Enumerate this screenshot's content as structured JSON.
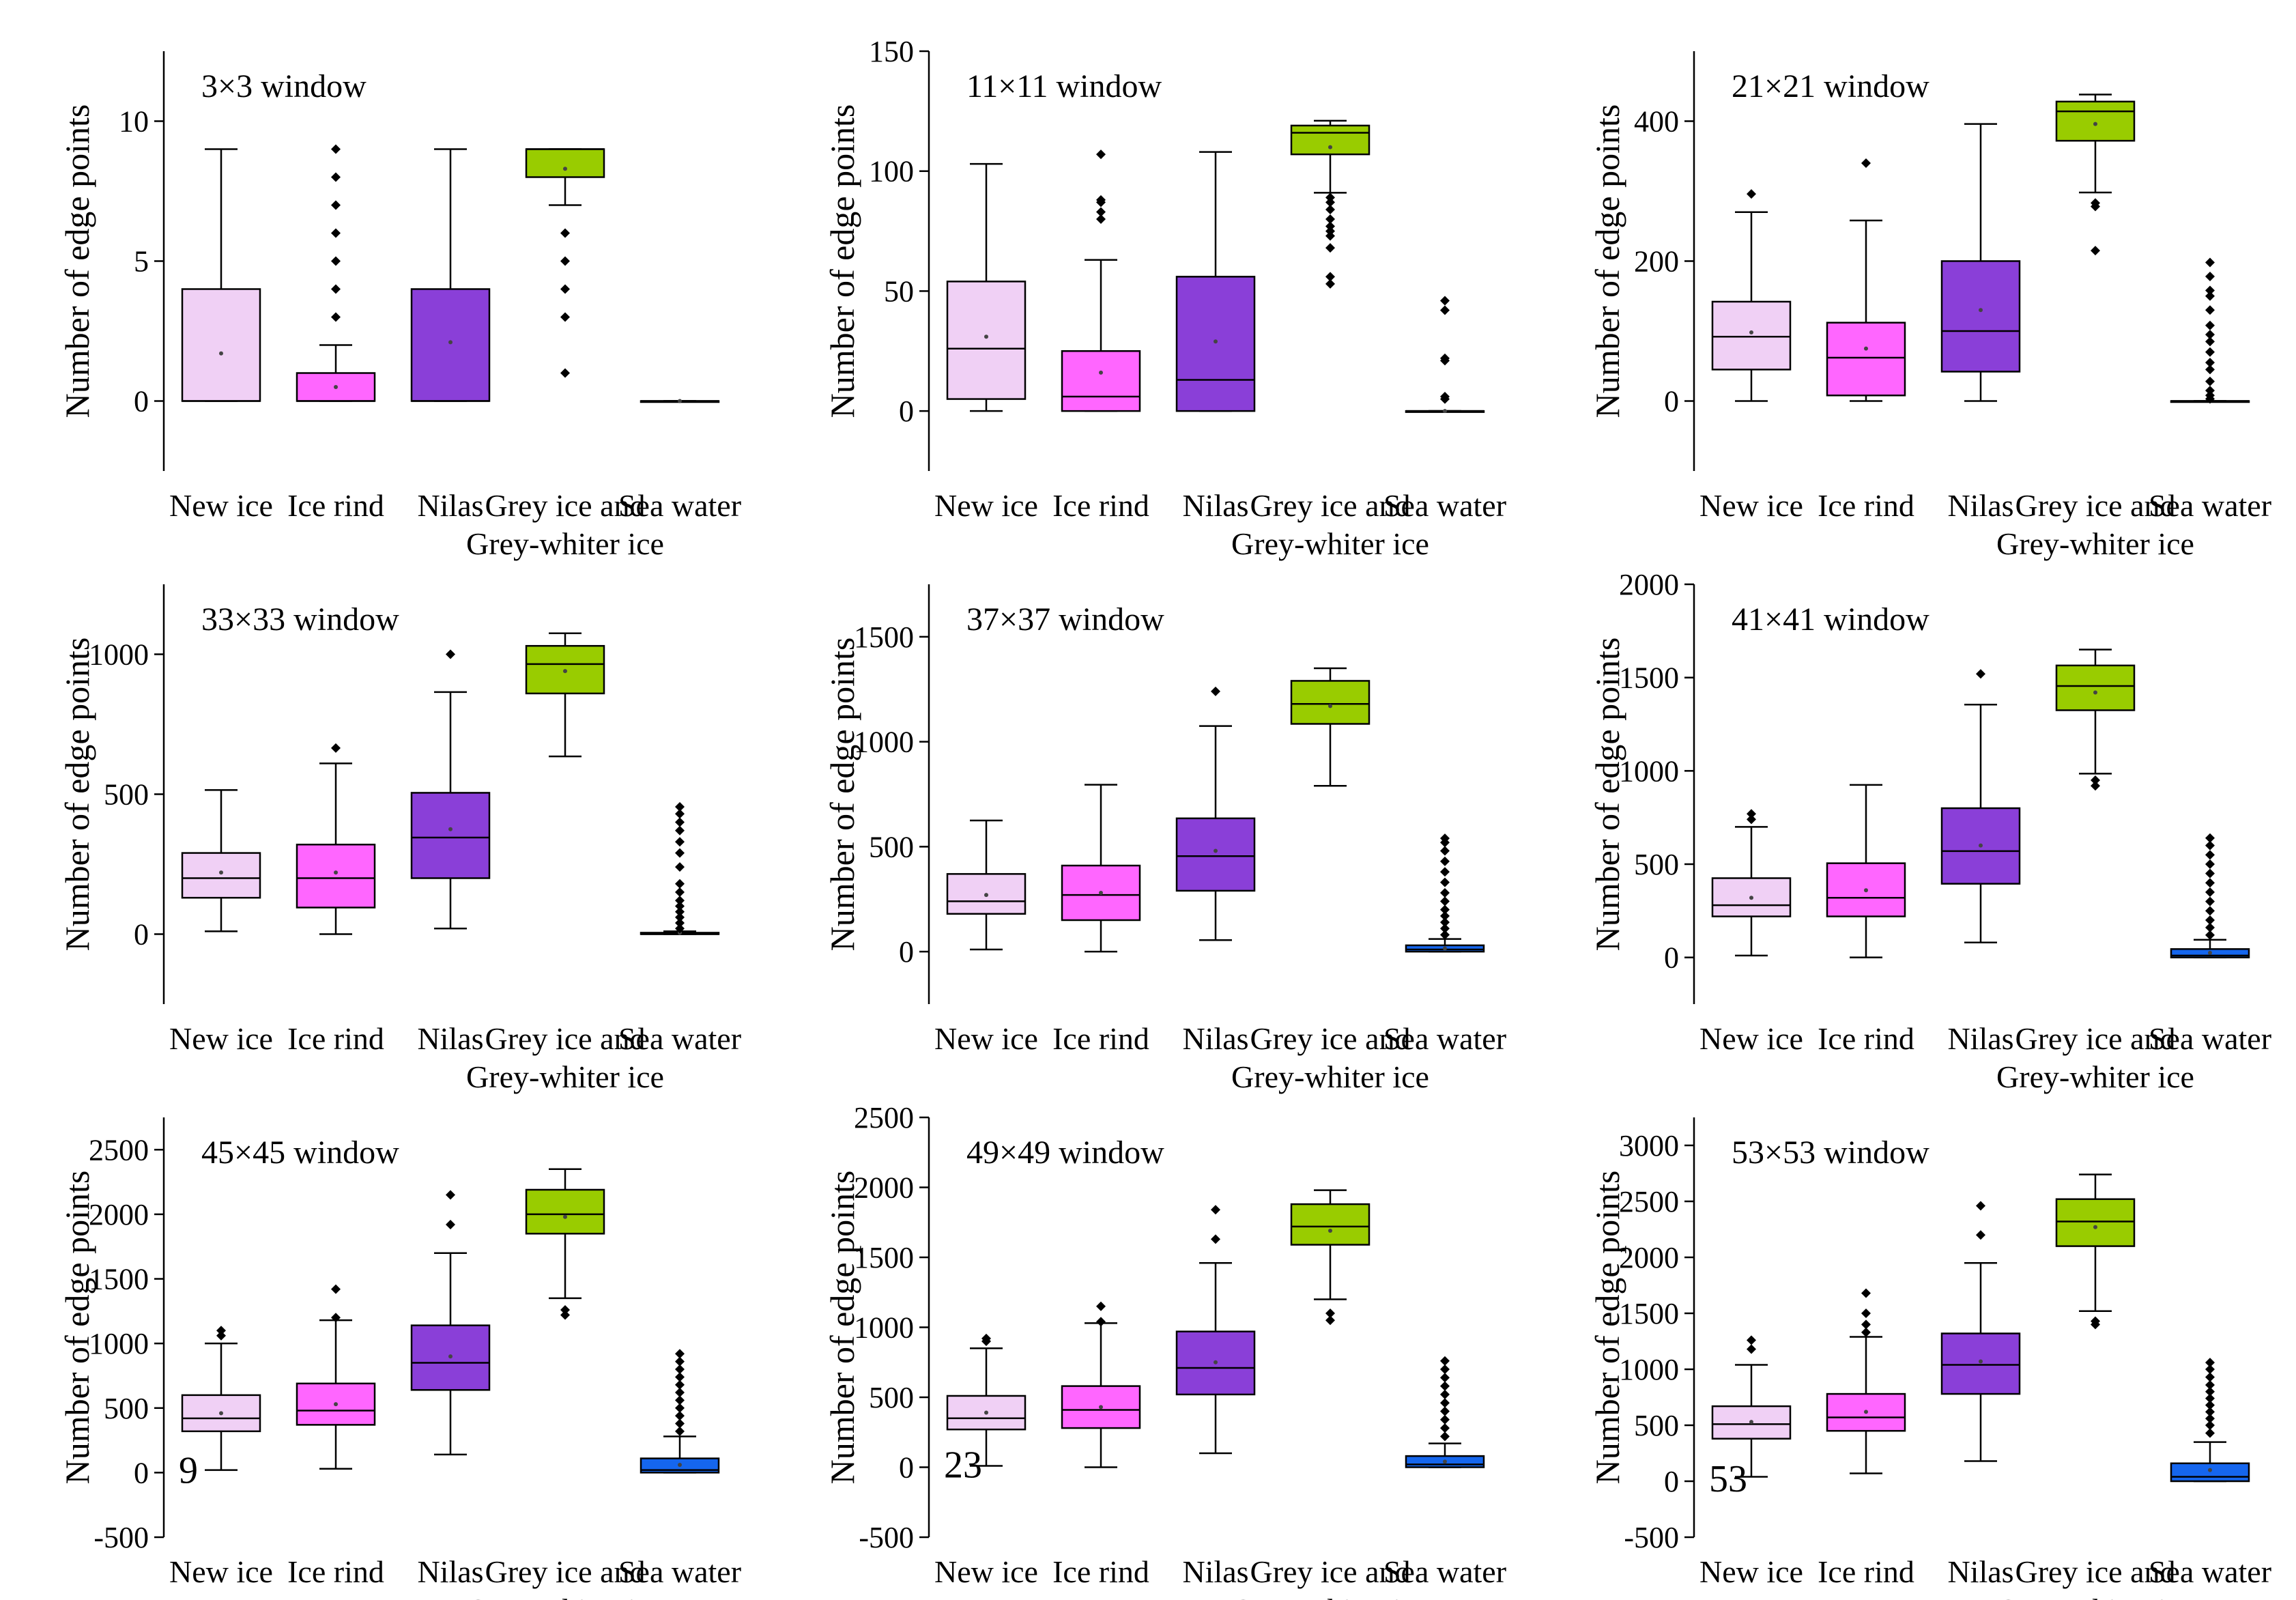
{
  "figure": {
    "categories": [
      "New ice",
      "Ice rind",
      "Nilas",
      "Grey ice and\nGrey-whiter ice",
      "Sea water"
    ],
    "ylabel": "Number of edge points",
    "colors": {
      "New ice": "#F0D0F5",
      "Ice rind": "#FF66FF",
      "Nilas": "#8A3FD8",
      "Grey ice and Grey-whiter ice": "#99CC00",
      "Sea water": "#1566EE"
    }
  },
  "chart_data": [
    {
      "type": "box",
      "title": "3×3 window",
      "ylabel": "Number of edge points",
      "ylim": [
        -2.5,
        12.5
      ],
      "yticks": [
        0,
        5,
        10
      ],
      "corner_label": "",
      "boxes": [
        {
          "category": "New ice",
          "min": 0,
          "q1": 0,
          "median": 0,
          "q3": 4,
          "max": 9,
          "mean": 1.7,
          "outliers": []
        },
        {
          "category": "Ice rind",
          "min": 0,
          "q1": 0,
          "median": 0,
          "q3": 1,
          "max": 2,
          "mean": 0.5,
          "outliers": [
            3,
            4,
            5,
            6,
            7,
            8,
            9
          ]
        },
        {
          "category": "Nilas",
          "min": 0,
          "q1": 0,
          "median": 0,
          "q3": 4,
          "max": 9,
          "mean": 2.1,
          "outliers": []
        },
        {
          "category": "Grey ice and Grey-whiter ice",
          "min": 7,
          "q1": 8,
          "median": 9,
          "q3": 9,
          "max": 9,
          "mean": 8.3,
          "outliers": [
            1,
            3,
            4,
            5,
            6
          ]
        },
        {
          "category": "Sea water",
          "min": 0,
          "q1": 0,
          "median": 0,
          "q3": 0,
          "max": 0,
          "mean": 0,
          "outliers": []
        }
      ]
    },
    {
      "type": "box",
      "title": "11×11 window",
      "ylabel": "Number of edge points",
      "ylim": [
        -25,
        150
      ],
      "yticks": [
        0,
        50,
        100,
        150
      ],
      "corner_label": "",
      "boxes": [
        {
          "category": "New ice",
          "min": 0,
          "q1": 5,
          "median": 26,
          "q3": 54,
          "max": 103,
          "mean": 31,
          "outliers": []
        },
        {
          "category": "Ice rind",
          "min": 0,
          "q1": 0,
          "median": 6,
          "q3": 25,
          "max": 63,
          "mean": 16,
          "outliers": [
            80,
            83,
            87,
            88,
            107
          ]
        },
        {
          "category": "Nilas",
          "min": 0,
          "q1": 0,
          "median": 13,
          "q3": 56,
          "max": 108,
          "mean": 29,
          "outliers": []
        },
        {
          "category": "Grey ice and Grey-whiter ice",
          "min": 91,
          "q1": 107,
          "median": 116,
          "q3": 119,
          "max": 121,
          "mean": 110,
          "outliers": [
            53,
            56,
            68,
            73,
            75,
            77,
            80,
            84,
            87,
            89
          ]
        },
        {
          "category": "Sea water",
          "min": 0,
          "q1": 0,
          "median": 0,
          "q3": 0,
          "max": 0,
          "mean": 0,
          "outliers": [
            5,
            6,
            21,
            22,
            42,
            46
          ]
        }
      ]
    },
    {
      "type": "box",
      "title": "21×21 window",
      "ylabel": "Number of edge points",
      "ylim": [
        -100,
        500
      ],
      "yticks": [
        0,
        200,
        400
      ],
      "corner_label": "",
      "boxes": [
        {
          "category": "New ice",
          "min": 0,
          "q1": 45,
          "median": 92,
          "q3": 142,
          "max": 270,
          "mean": 98,
          "outliers": [
            296
          ]
        },
        {
          "category": "Ice rind",
          "min": 0,
          "q1": 8,
          "median": 62,
          "q3": 112,
          "max": 258,
          "mean": 75,
          "outliers": [
            340
          ]
        },
        {
          "category": "Nilas",
          "min": 0,
          "q1": 42,
          "median": 100,
          "q3": 200,
          "max": 396,
          "mean": 130,
          "outliers": []
        },
        {
          "category": "Grey ice and Grey-whiter ice",
          "min": 298,
          "q1": 372,
          "median": 414,
          "q3": 428,
          "max": 438,
          "mean": 396,
          "outliers": [
            215,
            278,
            283
          ]
        },
        {
          "category": "Sea water",
          "min": 0,
          "q1": 0,
          "median": 0,
          "q3": 0,
          "max": 0,
          "mean": 1,
          "outliers": [
            3,
            8,
            15,
            28,
            45,
            55,
            70,
            85,
            95,
            108,
            130,
            150,
            158,
            178,
            198
          ]
        }
      ]
    },
    {
      "type": "box",
      "title": "33×33 window",
      "ylabel": "Number of edge points",
      "ylim": [
        -250,
        1250
      ],
      "yticks": [
        0,
        500,
        1000
      ],
      "corner_label": "",
      "boxes": [
        {
          "category": "New ice",
          "min": 10,
          "q1": 130,
          "median": 200,
          "q3": 290,
          "max": 515,
          "mean": 220,
          "outliers": []
        },
        {
          "category": "Ice rind",
          "min": 0,
          "q1": 95,
          "median": 200,
          "q3": 320,
          "max": 610,
          "mean": 220,
          "outliers": [
            665
          ]
        },
        {
          "category": "Nilas",
          "min": 20,
          "q1": 200,
          "median": 345,
          "q3": 505,
          "max": 865,
          "mean": 375,
          "outliers": [
            1000
          ]
        },
        {
          "category": "Grey ice and Grey-whiter ice",
          "min": 635,
          "q1": 860,
          "median": 965,
          "q3": 1030,
          "max": 1075,
          "mean": 940,
          "outliers": []
        },
        {
          "category": "Sea water",
          "min": 0,
          "q1": 0,
          "median": 0,
          "q3": 5,
          "max": 10,
          "mean": 5,
          "outliers": [
            20,
            40,
            60,
            80,
            100,
            120,
            150,
            180,
            240,
            290,
            330,
            370,
            400,
            430,
            455
          ]
        }
      ]
    },
    {
      "type": "box",
      "title": "37×37 window",
      "ylabel": "Number of edge points",
      "ylim": [
        -250,
        1750
      ],
      "yticks": [
        0,
        500,
        1000,
        1500
      ],
      "corner_label": "",
      "boxes": [
        {
          "category": "New ice",
          "min": 10,
          "q1": 180,
          "median": 240,
          "q3": 370,
          "max": 625,
          "mean": 270,
          "outliers": []
        },
        {
          "category": "Ice rind",
          "min": 0,
          "q1": 150,
          "median": 270,
          "q3": 410,
          "max": 795,
          "mean": 280,
          "outliers": []
        },
        {
          "category": "Nilas",
          "min": 55,
          "q1": 290,
          "median": 455,
          "q3": 635,
          "max": 1075,
          "mean": 480,
          "outliers": [
            1240
          ]
        },
        {
          "category": "Grey ice and Grey-whiter ice",
          "min": 790,
          "q1": 1085,
          "median": 1180,
          "q3": 1290,
          "max": 1350,
          "mean": 1170,
          "outliers": []
        },
        {
          "category": "Sea water",
          "min": 0,
          "q1": 0,
          "median": 10,
          "q3": 30,
          "max": 60,
          "mean": 15,
          "outliers": [
            80,
            110,
            140,
            170,
            200,
            240,
            280,
            330,
            380,
            430,
            480,
            520,
            540
          ]
        }
      ]
    },
    {
      "type": "box",
      "title": "41×41 window",
      "ylabel": "Number of edge points",
      "ylim": [
        -250,
        2000
      ],
      "yticks": [
        0,
        500,
        1000,
        1500,
        2000
      ],
      "corner_label": "",
      "boxes": [
        {
          "category": "New ice",
          "min": 10,
          "q1": 220,
          "median": 280,
          "q3": 425,
          "max": 700,
          "mean": 320,
          "outliers": [
            740,
            770
          ]
        },
        {
          "category": "Ice rind",
          "min": 0,
          "q1": 220,
          "median": 320,
          "q3": 505,
          "max": 925,
          "mean": 360,
          "outliers": []
        },
        {
          "category": "Nilas",
          "min": 80,
          "q1": 395,
          "median": 570,
          "q3": 800,
          "max": 1355,
          "mean": 600,
          "outliers": [
            1520
          ]
        },
        {
          "category": "Grey ice and Grey-whiter ice",
          "min": 985,
          "q1": 1325,
          "median": 1455,
          "q3": 1565,
          "max": 1650,
          "mean": 1420,
          "outliers": [
            920,
            950
          ]
        },
        {
          "category": "Sea water",
          "min": 0,
          "q1": 0,
          "median": 10,
          "q3": 45,
          "max": 95,
          "mean": 25,
          "outliers": [
            120,
            160,
            200,
            250,
            300,
            350,
            400,
            450,
            500,
            550,
            600,
            640
          ]
        }
      ]
    },
    {
      "type": "box",
      "title": "45×45 window",
      "ylabel": "Number of edge points",
      "ylim": [
        -500,
        2750
      ],
      "yticks": [
        -500,
        0,
        500,
        1000,
        1500,
        2000,
        2500
      ],
      "corner_label": "9",
      "boxes": [
        {
          "category": "New ice",
          "min": 20,
          "q1": 320,
          "median": 420,
          "q3": 600,
          "max": 1000,
          "mean": 460,
          "outliers": [
            1060,
            1100
          ]
        },
        {
          "category": "Ice rind",
          "min": 30,
          "q1": 370,
          "median": 480,
          "q3": 690,
          "max": 1180,
          "mean": 530,
          "outliers": [
            1200,
            1420
          ]
        },
        {
          "category": "Nilas",
          "min": 140,
          "q1": 640,
          "median": 850,
          "q3": 1140,
          "max": 1700,
          "mean": 900,
          "outliers": [
            1920,
            2150
          ]
        },
        {
          "category": "Grey ice and Grey-whiter ice",
          "min": 1350,
          "q1": 1850,
          "median": 2000,
          "q3": 2190,
          "max": 2350,
          "mean": 1980,
          "outliers": [
            1220,
            1260
          ]
        },
        {
          "category": "Sea water",
          "min": 0,
          "q1": 0,
          "median": 20,
          "q3": 110,
          "max": 280,
          "mean": 60,
          "outliers": [
            320,
            380,
            440,
            500,
            560,
            620,
            680,
            740,
            800,
            860,
            920
          ]
        }
      ]
    },
    {
      "type": "box",
      "title": "49×49 window",
      "ylabel": "Number of edge points",
      "ylim": [
        -500,
        2500
      ],
      "yticks": [
        -500,
        0,
        500,
        1000,
        1500,
        2000,
        2500
      ],
      "corner_label": "23",
      "boxes": [
        {
          "category": "New ice",
          "min": 10,
          "q1": 270,
          "median": 350,
          "q3": 510,
          "max": 850,
          "mean": 390,
          "outliers": [
            900,
            920
          ]
        },
        {
          "category": "Ice rind",
          "min": 0,
          "q1": 280,
          "median": 410,
          "q3": 580,
          "max": 1030,
          "mean": 430,
          "outliers": [
            1040,
            1150
          ]
        },
        {
          "category": "Nilas",
          "min": 100,
          "q1": 520,
          "median": 710,
          "q3": 970,
          "max": 1460,
          "mean": 750,
          "outliers": [
            1630,
            1840
          ]
        },
        {
          "category": "Grey ice and Grey-whiter ice",
          "min": 1200,
          "q1": 1590,
          "median": 1720,
          "q3": 1880,
          "max": 1980,
          "mean": 1690,
          "outliers": [
            1050,
            1100
          ]
        },
        {
          "category": "Sea water",
          "min": 0,
          "q1": 0,
          "median": 20,
          "q3": 80,
          "max": 170,
          "mean": 40,
          "outliers": [
            220,
            280,
            340,
            400,
            460,
            520,
            580,
            640,
            700,
            760
          ]
        }
      ]
    },
    {
      "type": "box",
      "title": "53×53 window",
      "ylabel": "Number of edge points",
      "ylim": [
        -500,
        3250
      ],
      "yticks": [
        -500,
        0,
        500,
        1000,
        1500,
        2000,
        2500,
        3000
      ],
      "corner_label": "53",
      "boxes": [
        {
          "category": "New ice",
          "min": 40,
          "q1": 380,
          "median": 510,
          "q3": 670,
          "max": 1040,
          "mean": 530,
          "outliers": [
            1180,
            1260
          ]
        },
        {
          "category": "Ice rind",
          "min": 70,
          "q1": 450,
          "median": 570,
          "q3": 780,
          "max": 1290,
          "mean": 620,
          "outliers": [
            1330,
            1400,
            1500,
            1680
          ]
        },
        {
          "category": "Nilas",
          "min": 180,
          "q1": 780,
          "median": 1040,
          "q3": 1320,
          "max": 1950,
          "mean": 1070,
          "outliers": [
            2200,
            2460
          ]
        },
        {
          "category": "Grey ice and Grey-whiter ice",
          "min": 1520,
          "q1": 2100,
          "median": 2320,
          "q3": 2520,
          "max": 2740,
          "mean": 2270,
          "outliers": [
            1400,
            1430
          ]
        },
        {
          "category": "Sea water",
          "min": 0,
          "q1": 0,
          "median": 40,
          "q3": 160,
          "max": 350,
          "mean": 100,
          "outliers": [
            430,
            500,
            560,
            620,
            680,
            740,
            800,
            860,
            930,
            1000,
            1060
          ]
        }
      ]
    }
  ]
}
